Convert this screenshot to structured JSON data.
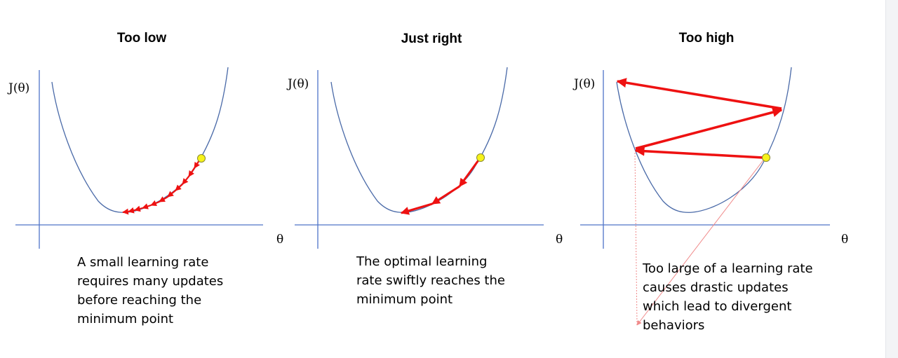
{
  "panels": [
    {
      "title": "Too low",
      "y_label": "J(θ)",
      "x_label": "θ",
      "caption": [
        "A small learning rate",
        "requires many updates",
        "before reaching the",
        "minimum point"
      ]
    },
    {
      "title": "Just right",
      "y_label": "J(θ)",
      "x_label": "θ",
      "caption": [
        "The optimal learning",
        "rate swiftly reaches the",
        "minimum point"
      ]
    },
    {
      "title": "Too high",
      "y_label": "J(θ)",
      "x_label": "θ",
      "caption": [
        "Too large of a learning rate",
        "causes drastic updates",
        "which lead to divergent",
        "behaviors"
      ]
    }
  ],
  "colors": {
    "axis": "#4f74c8",
    "curve": "#4a6aa8",
    "arrow": "#ee1111",
    "start_point": "#f6f21a",
    "diverge_line": "#f08a8a"
  }
}
